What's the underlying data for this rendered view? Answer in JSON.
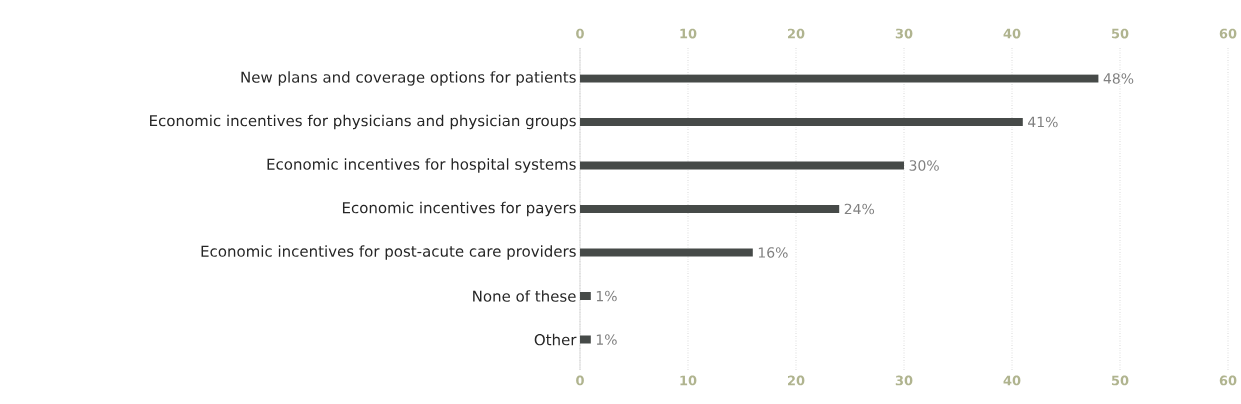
{
  "chart_data": {
    "type": "bar",
    "orientation": "horizontal",
    "categories": [
      "New plans and coverage options for patients",
      "Economic incentives for physicians and physician groups",
      "Economic incentives for hospital systems",
      "Economic incentives for payers",
      "Economic incentives for post-acute care providers",
      "None of these",
      "Other"
    ],
    "values": [
      48,
      41,
      30,
      24,
      16,
      1,
      1
    ],
    "value_labels": [
      "48%",
      "41%",
      "30%",
      "24%",
      "16%",
      "1%",
      "1%"
    ],
    "color": "#464a48",
    "xlim": [
      0,
      60
    ],
    "xticks": [
      0,
      10,
      20,
      30,
      40,
      50,
      60
    ],
    "x2lim": [
      0,
      60
    ],
    "x2ticks": [
      0,
      10,
      20,
      30,
      40,
      50,
      60
    ],
    "grid": "x"
  }
}
